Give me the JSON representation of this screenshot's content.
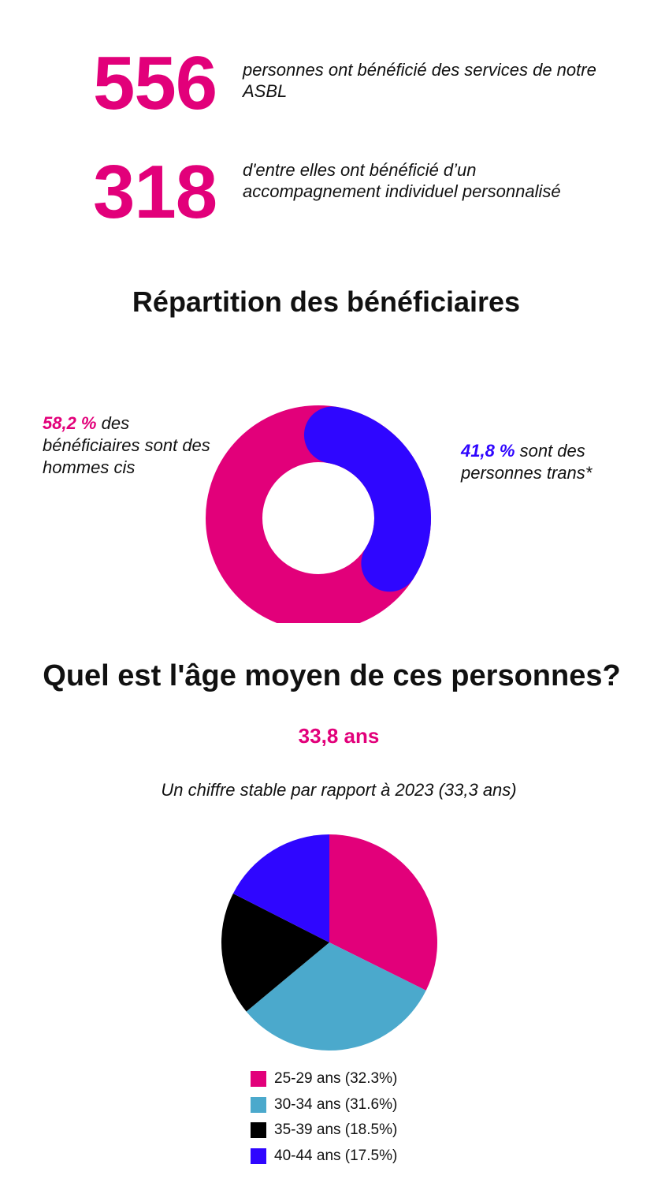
{
  "stats": [
    {
      "number": "556",
      "text": "personnes ont bénéficié des services de notre ASBL"
    },
    {
      "number": "318",
      "text": "d'entre elles ont bénéficié d’un accompagnement individuel personnalisé"
    }
  ],
  "section1_title": "Répartition des bénéficiaires",
  "donut_labels": {
    "cis_pct": "58,2 %",
    "cis_text": " des bénéficiaires sont des hommes cis",
    "trans_pct": "41,8 %",
    "trans_text": " sont des personnes trans*"
  },
  "section2_title": "Quel est l'âge moyen de ces personnes?",
  "average_age": "33,8 ans",
  "average_note": "Un chiffre stable par rapport à 2023 (33,3 ans)",
  "colors": {
    "pink": "#e2007a",
    "blue": "#2f06ff",
    "teal": "#4ba9cc",
    "black": "#000000"
  },
  "chart_data": [
    {
      "type": "pie",
      "variant": "donut",
      "title": "Répartition des bénéficiaires",
      "categories": [
        "hommes cis",
        "personnes trans*"
      ],
      "values": [
        58.2,
        41.8
      ],
      "colors": [
        "#e2007a",
        "#2f06ff"
      ]
    },
    {
      "type": "pie",
      "title": "",
      "categories": [
        "25-29 ans (32.3%)",
        "30-34 ans (31.6%)",
        "35-39 ans (18.5%)",
        "40-44 ans (17.5%)"
      ],
      "values": [
        32.3,
        31.6,
        18.5,
        17.5
      ],
      "colors": [
        "#e2007a",
        "#4ba9cc",
        "#000000",
        "#2f06ff"
      ],
      "legend": "bottom"
    }
  ]
}
